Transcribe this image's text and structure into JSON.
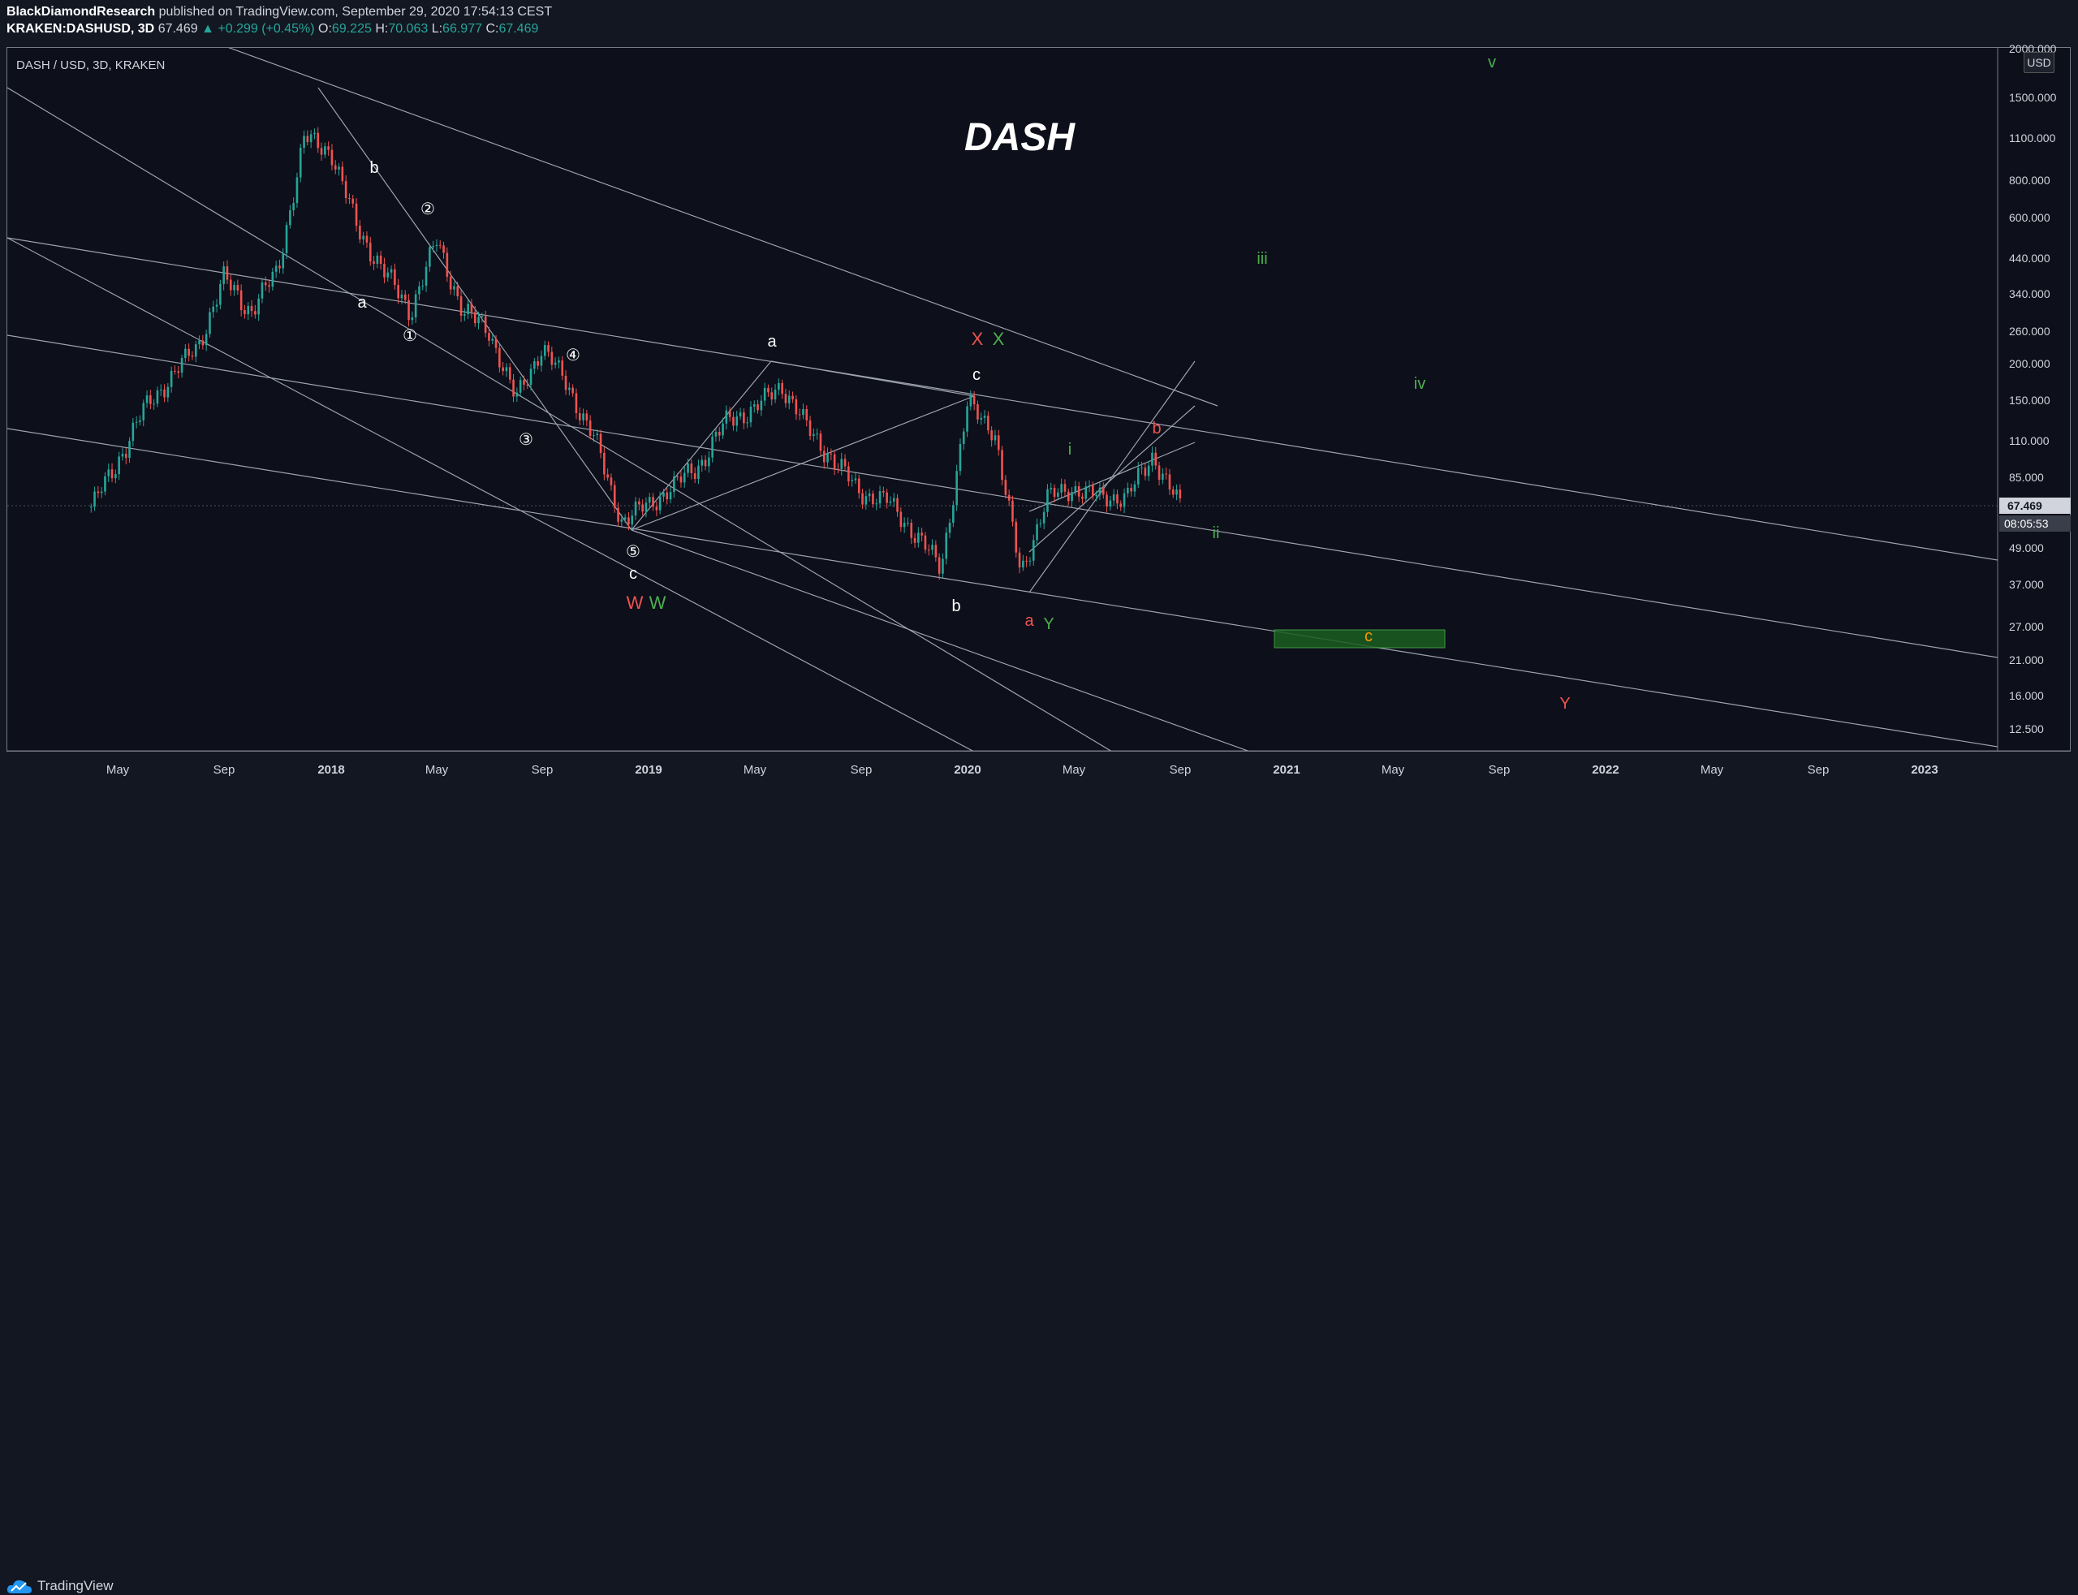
{
  "header": {
    "author": "BlackDiamondResearch",
    "published_text": "published on TradingView.com, September 29, 2020 17:54:13 CEST",
    "symbol": "KRAKEN:DASHUSD, 3D",
    "last": "67.469",
    "change": "+0.299 (+0.45%)",
    "open_label": "O:",
    "open": "69.225",
    "high_label": "H:",
    "high": "70.063",
    "low_label": "L:",
    "low": "66.977",
    "close_label": "C:",
    "close": "67.469"
  },
  "chart_title": "DASH / USD, 3D, KRAKEN",
  "watermark": "DASH",
  "currency_button": "USD",
  "footer": {
    "brand": "TradingView"
  },
  "colors": {
    "up": "#26a69a",
    "down": "#ef5350",
    "green_label": "#4caf50",
    "red_label": "#ef5350",
    "orange_label": "#ff9800",
    "price_tag": "#d1d4dc"
  },
  "chart_data": {
    "type": "candlestick",
    "y_scale": "log",
    "y_ticks": [
      "2000.000",
      "1500.000",
      "1100.000",
      "800.000",
      "600.000",
      "440.000",
      "340.000",
      "260.000",
      "200.000",
      "150.000",
      "110.000",
      "85.000",
      "67.469",
      "49.000",
      "37.000",
      "27.000",
      "21.000",
      "16.000",
      "12.500"
    ],
    "x_ticks": [
      "May",
      "Sep",
      "2018",
      "May",
      "Sep",
      "2019",
      "May",
      "Sep",
      "2020",
      "May",
      "Sep",
      "2021",
      "May",
      "Sep",
      "2022",
      "May",
      "Sep",
      "2023"
    ],
    "last_price": "67.469",
    "countdown": "08:05:53",
    "price_path": [
      [
        "2017-04",
        67
      ],
      [
        "2017-05",
        95
      ],
      [
        "2017-06",
        140
      ],
      [
        "2017-07",
        180
      ],
      [
        "2017-08",
        230
      ],
      [
        "2017-09",
        380
      ],
      [
        "2017-10",
        300
      ],
      [
        "2017-11",
        400
      ],
      [
        "2017-12",
        1100
      ],
      [
        "2018-01",
        1000
      ],
      [
        "2018-02",
        550
      ],
      [
        "2018-03",
        400
      ],
      [
        "2018-04",
        300
      ],
      [
        "2018-05",
        500
      ],
      [
        "2018-06",
        300
      ],
      [
        "2018-07",
        260
      ],
      [
        "2018-08",
        150
      ],
      [
        "2018-09",
        230
      ],
      [
        "2018-10",
        165
      ],
      [
        "2018-11",
        110
      ],
      [
        "2018-12",
        60
      ],
      [
        "2019-01",
        68
      ],
      [
        "2019-02",
        80
      ],
      [
        "2019-03",
        95
      ],
      [
        "2019-04",
        130
      ],
      [
        "2019-05",
        140
      ],
      [
        "2019-06",
        170
      ],
      [
        "2019-07",
        120
      ],
      [
        "2019-08",
        95
      ],
      [
        "2019-09",
        75
      ],
      [
        "2019-10",
        70
      ],
      [
        "2019-11",
        55
      ],
      [
        "2019-12",
        42
      ],
      [
        "2020-01",
        145
      ],
      [
        "2020-02",
        120
      ],
      [
        "2020-03",
        40
      ],
      [
        "2020-04",
        72
      ],
      [
        "2020-05",
        78
      ],
      [
        "2020-06",
        72
      ],
      [
        "2020-07",
        73
      ],
      [
        "2020-08",
        100
      ],
      [
        "2020-09",
        67
      ]
    ],
    "wave_labels": [
      {
        "text": "b",
        "color": "#ffffff"
      },
      {
        "text": "②",
        "color": "#ffffff"
      },
      {
        "text": "a",
        "color": "#ffffff"
      },
      {
        "text": "①",
        "color": "#ffffff"
      },
      {
        "text": "④",
        "color": "#ffffff"
      },
      {
        "text": "③",
        "color": "#ffffff"
      },
      {
        "text": "⑤",
        "color": "#ffffff"
      },
      {
        "text": "c",
        "color": "#ffffff"
      },
      {
        "text": "W",
        "color": "#ef5350"
      },
      {
        "text": "W",
        "color": "#4caf50"
      },
      {
        "text": "a",
        "color": "#ffffff"
      },
      {
        "text": "X",
        "color": "#ef5350"
      },
      {
        "text": "X",
        "color": "#4caf50"
      },
      {
        "text": "c",
        "color": "#ffffff"
      },
      {
        "text": "b",
        "color": "#ffffff"
      },
      {
        "text": "a",
        "color": "#ef5350"
      },
      {
        "text": "Y",
        "color": "#4caf50"
      },
      {
        "text": "i",
        "color": "#4caf50"
      },
      {
        "text": "b",
        "color": "#ef5350"
      },
      {
        "text": "ii",
        "color": "#4caf50"
      },
      {
        "text": "iii",
        "color": "#4caf50"
      },
      {
        "text": "iv",
        "color": "#4caf50"
      },
      {
        "text": "v",
        "color": "#4caf50"
      },
      {
        "text": "c",
        "color": "#ff9800"
      },
      {
        "text": "Y",
        "color": "#ef5350"
      }
    ]
  }
}
